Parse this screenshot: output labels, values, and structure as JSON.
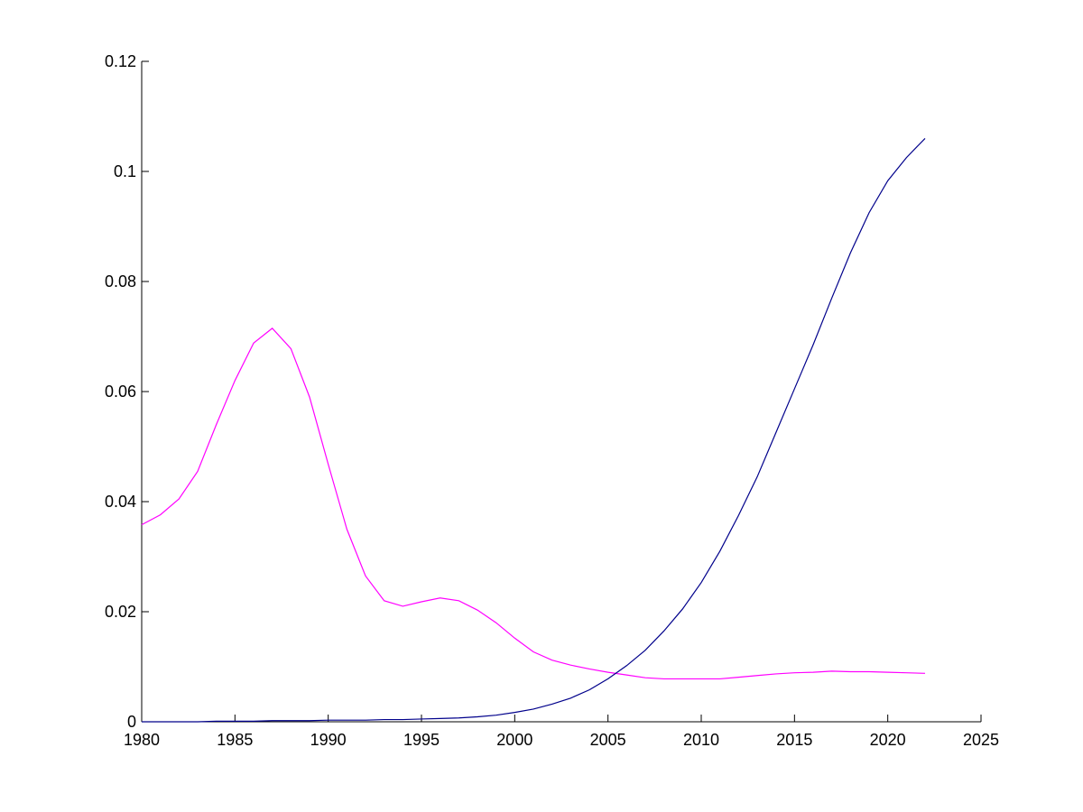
{
  "chart_data": {
    "type": "line",
    "title": "",
    "xlabel": "",
    "ylabel": "",
    "xlim": [
      1980,
      2025
    ],
    "ylim": [
      0,
      0.12
    ],
    "grid": false,
    "x_ticks": [
      1980,
      1985,
      1990,
      1995,
      2000,
      2005,
      2010,
      2015,
      2020,
      2025
    ],
    "y_ticks": [
      0,
      0.02,
      0.04,
      0.06,
      0.08,
      0.1,
      0.12
    ],
    "x_tick_labels": [
      "1980",
      "1985",
      "1990",
      "1995",
      "2000",
      "2005",
      "2010",
      "2015",
      "2020",
      "2025"
    ],
    "y_tick_labels": [
      "0",
      "0.02",
      "0.04",
      "0.06",
      "0.08",
      "0.1",
      "0.12"
    ],
    "series": [
      {
        "color": "#ff00ff",
        "x": [
          1980,
          1981,
          1982,
          1983,
          1984,
          1985,
          1986,
          1987,
          1988,
          1989,
          1990,
          1991,
          1992,
          1993,
          1994,
          1995,
          1996,
          1997,
          1998,
          1999,
          2000,
          2001,
          2002,
          2003,
          2004,
          2005,
          2006,
          2007,
          2008,
          2009,
          2010,
          2011,
          2012,
          2013,
          2014,
          2015,
          2016,
          2017,
          2018,
          2019,
          2020,
          2021,
          2022
        ],
        "values": [
          0.0358,
          0.0376,
          0.0405,
          0.0455,
          0.054,
          0.062,
          0.0688,
          0.0715,
          0.0678,
          0.059,
          0.0468,
          0.035,
          0.0265,
          0.022,
          0.021,
          0.0218,
          0.0225,
          0.022,
          0.0203,
          0.018,
          0.0152,
          0.0127,
          0.0112,
          0.0103,
          0.0096,
          0.009,
          0.0085,
          0.008,
          0.0078,
          0.0078,
          0.0078,
          0.0078,
          0.0081,
          0.0084,
          0.0087,
          0.0089,
          0.009,
          0.0092,
          0.0091,
          0.0091,
          0.009,
          0.0089,
          0.0088
        ]
      },
      {
        "color": "#00008b",
        "x": [
          1980,
          1981,
          1982,
          1983,
          1984,
          1985,
          1986,
          1987,
          1988,
          1989,
          1990,
          1991,
          1992,
          1993,
          1994,
          1995,
          1996,
          1997,
          1998,
          1999,
          2000,
          2001,
          2002,
          2003,
          2004,
          2005,
          2006,
          2007,
          2008,
          2009,
          2010,
          2011,
          2012,
          2013,
          2014,
          2015,
          2016,
          2017,
          2018,
          2019,
          2020,
          2021,
          2022
        ],
        "values": [
          0.0,
          0.0,
          0.0,
          0.0,
          0.0001,
          0.0001,
          0.0001,
          0.0002,
          0.0002,
          0.0002,
          0.0003,
          0.0003,
          0.0003,
          0.0004,
          0.0004,
          0.0005,
          0.0006,
          0.0007,
          0.0009,
          0.0012,
          0.0017,
          0.0023,
          0.0032,
          0.0043,
          0.0058,
          0.0078,
          0.0102,
          0.013,
          0.0165,
          0.0205,
          0.0253,
          0.031,
          0.0375,
          0.0445,
          0.0525,
          0.0605,
          0.0685,
          0.077,
          0.0852,
          0.0925,
          0.0983,
          0.1025,
          0.106
        ]
      }
    ]
  }
}
